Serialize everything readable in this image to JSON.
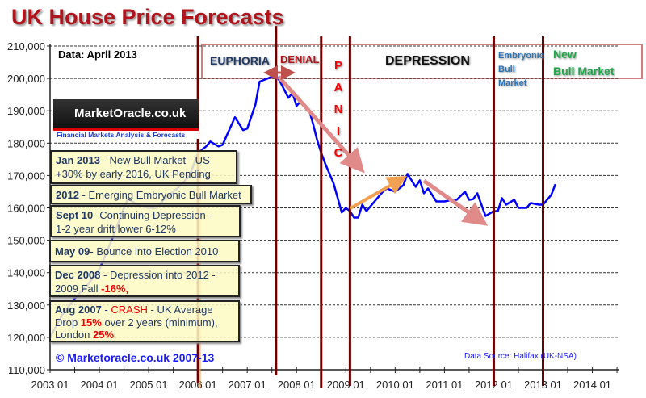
{
  "title": "UK House Price Forecasts",
  "data_note": "Data:  April  2013",
  "copyright": "© Marketoracle.co.uk 2007-13",
  "data_source": "Data Source:  Halifax (UK-NSA)",
  "logo": {
    "name": "MarketOracle.co.uk",
    "tagline": "Financial Markets Analysis & Forecasts"
  },
  "phases": {
    "euphoria": "EUPHORIA",
    "denial": "DENIAL",
    "panic": [
      "P",
      "A",
      "N",
      "I",
      "C"
    ],
    "depression": "DEPRESSION",
    "embryonic": [
      "Embryonic",
      "Bull",
      "Market"
    ],
    "new_bull": [
      "New",
      "Bull Market"
    ]
  },
  "boxes": [
    {
      "lead": "Jan 2013",
      "rest": " - New Bull Market - US",
      "line2": "+30% by early 2016, UK Pending"
    },
    {
      "lead": "2012",
      "rest": " - Emerging Embryonic Bull Market"
    },
    {
      "lead": "Sept 10",
      "rest": "-  Continuing Depression  -",
      "line2": "1-2 year drift lower 6-12%"
    },
    {
      "lead": "May 09",
      "rest": "-  Bounce into Election 2010"
    },
    {
      "lead": "Dec 2008",
      "rest": " - Depression into 2012 -",
      "line2a": "2009 Fall ",
      "hl": "-16%,"
    },
    {
      "lead": "Aug 2007",
      "rest": " - ",
      "hl1": "CRASH",
      "rest2": " - UK Average",
      "l2a": "Drop ",
      "hl2": "15%",
      "l2b": " over 2 years  (minimum),",
      "l3a": "London ",
      "hl3": "25%"
    }
  ],
  "colors": {
    "series": "#0000ff",
    "phase_lines": "#6b0000",
    "title": "#b0141c",
    "arrow_pink": "#e08a8a",
    "arrow_orange": "#f0a050",
    "embryonic": "#2e75b6",
    "new_bull": "#1fa84a",
    "panic": "#ff0000"
  },
  "chart_data": {
    "type": "line",
    "title": "UK House Price Forecasts",
    "xlabel": "",
    "ylabel": "",
    "ylim": [
      110000,
      210000
    ],
    "yticks": [
      "210,000",
      "200,000",
      "190,000",
      "180,000",
      "170,000",
      "160,000",
      "150,000",
      "140,000",
      "130,000",
      "120,000",
      "110,000"
    ],
    "xticks": [
      "2003 01",
      "2004 01",
      "2005 01",
      "2006 01",
      "2007 01",
      "2008 01",
      "2009 01",
      "2010 01",
      "2011 01",
      "2012 01",
      "2013 01",
      "2014 01"
    ],
    "grid": "horizontal dashed",
    "phase_dividers": [
      "2006-01",
      "2007-08",
      "2008-07",
      "2009-02",
      "2012-01",
      "2013-01"
    ],
    "series": [
      {
        "x": [
          "2003-01",
          "2003-04",
          "2003-07",
          "2003-10",
          "2004-01",
          "2004-04",
          "2004-07",
          "2004-08",
          "2004-10",
          "2005-01",
          "2005-03",
          "2005-05",
          "2005-08",
          "2005-11",
          "2006-01",
          "2006-03",
          "2006-04",
          "2006-06",
          "2006-07",
          "2006-10",
          "2006-12",
          "2007-01",
          "2007-03",
          "2007-04",
          "2007-06",
          "2007-08",
          "2007-09",
          "2007-11",
          "2007-12",
          "2008-01",
          "2008-02",
          "2008-03",
          "2008-04",
          "2008-05",
          "2008-06",
          "2008-07",
          "2008-08",
          "2008-10",
          "2008-12",
          "2009-01",
          "2009-02",
          "2009-03",
          "2009-04",
          "2009-05",
          "2009-06",
          "2009-08",
          "2009-10",
          "2009-11",
          "2010-01",
          "2010-03",
          "2010-04",
          "2010-06",
          "2010-07",
          "2010-08",
          "2010-09",
          "2010-11",
          "2011-01",
          "2011-03",
          "2011-04",
          "2011-06",
          "2011-07",
          "2011-08",
          "2011-09",
          "2011-11",
          "2012-01",
          "2012-02",
          "2012-03",
          "2012-04",
          "2012-06",
          "2012-07",
          "2012-09",
          "2012-10",
          "2012-12",
          "2013-01",
          "2013-03",
          "2013-04"
        ],
        "values": [
          120000,
          127000,
          132000,
          136000,
          141000,
          150000,
          160000,
          163000,
          161000,
          160000,
          160000,
          163000,
          166000,
          170000,
          177000,
          179000,
          180500,
          179000,
          179500,
          188000,
          184000,
          184500,
          192000,
          199000,
          200000,
          201000,
          199000,
          194000,
          195500,
          191500,
          193000,
          191000,
          190500,
          186000,
          181000,
          177000,
          173600,
          167600,
          158600,
          160000,
          159000,
          157000,
          157000,
          161000,
          159000,
          162000,
          165000,
          166000,
          165000,
          167000,
          170500,
          166500,
          168500,
          164500,
          166000,
          162000,
          162000,
          162500,
          162500,
          165000,
          162500,
          162700,
          164500,
          157500,
          159000,
          159000,
          163000,
          161000,
          162500,
          160000,
          160000,
          161500,
          161000,
          161000,
          164000,
          167300
        ]
      }
    ]
  }
}
